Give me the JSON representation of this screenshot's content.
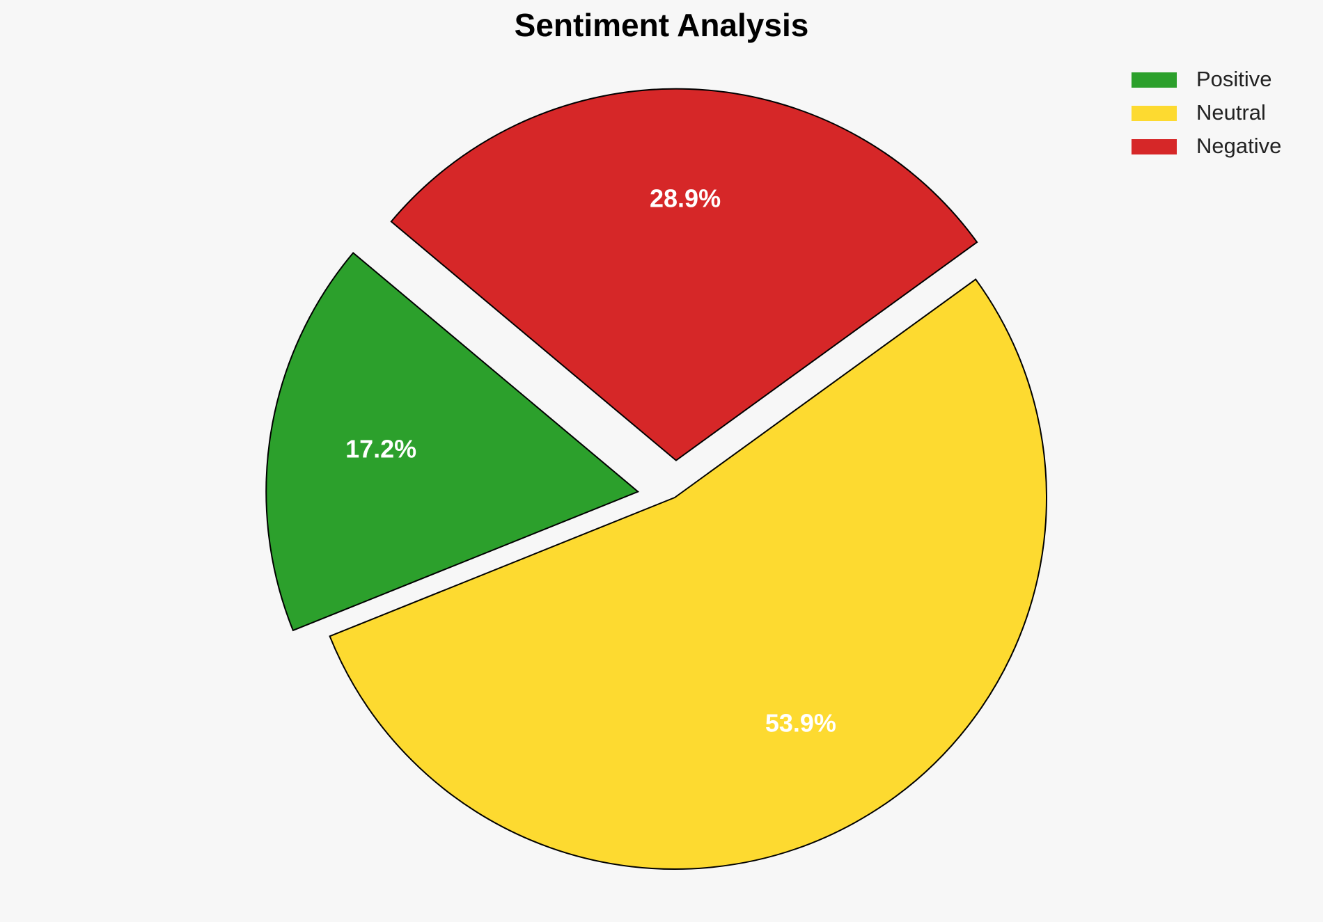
{
  "chart_data": {
    "type": "pie",
    "title": "Sentiment Analysis",
    "categories": [
      "Positive",
      "Neutral",
      "Negative"
    ],
    "values": [
      17.2,
      53.9,
      28.9
    ],
    "value_labels": [
      "17.2%",
      "53.9%",
      "28.9%"
    ],
    "colors": [
      "#2ca02c",
      "#fdda30",
      "#d62728"
    ],
    "explode": [
      0.1,
      0,
      0.1
    ],
    "legend": "upper right"
  }
}
